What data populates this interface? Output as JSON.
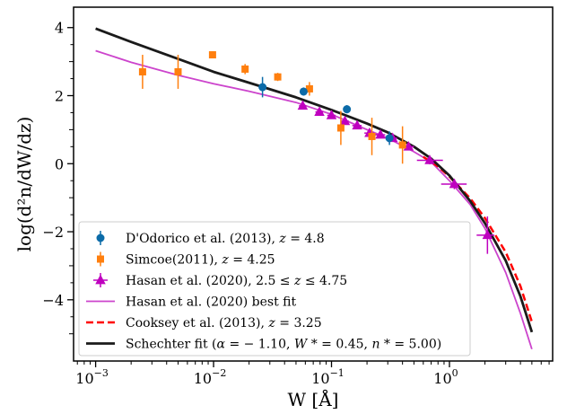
{
  "chart_data": {
    "type": "scatter",
    "xlabel": "W [Å]",
    "ylabel": "log(d²n/dW/dz)",
    "xscale": "log",
    "xlim": [
      0.00065,
      7.5
    ],
    "ylim": [
      -5.8,
      4.6
    ],
    "x_ticks": [
      {
        "value": 0.001,
        "base": "10",
        "exp": "−3"
      },
      {
        "value": 0.01,
        "base": "10",
        "exp": "−2"
      },
      {
        "value": 0.1,
        "base": "10",
        "exp": "−1"
      },
      {
        "value": 1,
        "base": "10",
        "exp": "0"
      }
    ],
    "y_ticks": [
      {
        "value": 4,
        "label": "4"
      },
      {
        "value": 2,
        "label": "2"
      },
      {
        "value": 0,
        "label": "0"
      },
      {
        "value": -2,
        "label": "−2"
      },
      {
        "value": -4,
        "label": "−4"
      }
    ],
    "grid": false,
    "legend_position": "lower-left",
    "series": [
      {
        "key": "dodorico",
        "kind": "errorbar",
        "marker": "circle",
        "color": "#0b6ba8",
        "name_parts": [
          "D'Odorico et al. (2013), ",
          "z",
          " = 4.8"
        ],
        "points": [
          {
            "x": 0.026,
            "y": 2.25,
            "yerr": 0.3
          },
          {
            "x": 0.058,
            "y": 2.12,
            "yerr": 0.12
          },
          {
            "x": 0.135,
            "y": 1.6,
            "yerr": 0.12
          },
          {
            "x": 0.31,
            "y": 0.75,
            "yerr": 0.2
          }
        ]
      },
      {
        "key": "simcoe",
        "kind": "errorbar",
        "marker": "square",
        "color": "#ff7f0e",
        "name_parts": [
          "Simcoe(2011), ",
          "z",
          " = 4.25"
        ],
        "points": [
          {
            "x": 0.0025,
            "y": 2.7,
            "yerr": 0.5
          },
          {
            "x": 0.005,
            "y": 2.7,
            "yerr": 0.5
          },
          {
            "x": 0.0098,
            "y": 3.2,
            "yerr": 0.1
          },
          {
            "x": 0.0185,
            "y": 2.78,
            "yerr": 0.15
          },
          {
            "x": 0.035,
            "y": 2.55,
            "yerr": 0.12
          },
          {
            "x": 0.065,
            "y": 2.2,
            "yerr": 0.2
          },
          {
            "x": 0.12,
            "y": 1.05,
            "yerr": 0.5
          },
          {
            "x": 0.22,
            "y": 0.8,
            "yerr": 0.55
          },
          {
            "x": 0.4,
            "y": 0.55,
            "yerr": 0.55
          }
        ]
      },
      {
        "key": "hasan",
        "kind": "errorbar",
        "marker": "triangle",
        "color": "#bf00bf",
        "name_parts": [
          "Hasan et al. (2020), 2.5 ≤ ",
          "z",
          " ≤ 4.75"
        ],
        "points": [
          {
            "x": 0.057,
            "y": 1.7,
            "xerr": [
              0.004,
              0.004
            ],
            "yerr": 0.05
          },
          {
            "x": 0.079,
            "y": 1.52,
            "xerr": [
              0.006,
              0.006
            ],
            "yerr": 0.05
          },
          {
            "x": 0.1,
            "y": 1.42,
            "xerr": [
              0.008,
              0.008
            ],
            "yerr": 0.05
          },
          {
            "x": 0.13,
            "y": 1.25,
            "xerr": [
              0.01,
              0.01
            ],
            "yerr": 0.06
          },
          {
            "x": 0.165,
            "y": 1.12,
            "xerr": [
              0.015,
              0.015
            ],
            "yerr": 0.07
          },
          {
            "x": 0.21,
            "y": 0.9,
            "xerr": [
              0.02,
              0.02
            ],
            "yerr": 0.08
          },
          {
            "x": 0.26,
            "y": 0.85,
            "xerr": [
              0.025,
              0.025
            ],
            "yerr": 0.08
          },
          {
            "x": 0.33,
            "y": 0.75,
            "xerr": [
              0.03,
              0.03
            ],
            "yerr": 0.08
          },
          {
            "x": 0.45,
            "y": 0.5,
            "xerr": [
              0.05,
              0.05
            ],
            "yerr": 0.1
          },
          {
            "x": 0.68,
            "y": 0.1,
            "xerr": [
              0.15,
              0.2
            ],
            "yerr": 0.12
          },
          {
            "x": 1.1,
            "y": -0.6,
            "xerr": [
              0.25,
              0.3
            ],
            "yerr": 0.15
          },
          {
            "x": 2.1,
            "y": -2.1,
            "xerr": [
              0.4,
              0.3
            ],
            "yerr": 0.55
          }
        ]
      },
      {
        "key": "hasan_fit",
        "kind": "line",
        "color": "#cc44cc",
        "dash": "",
        "width": 1.8,
        "name_parts": [
          "Hasan et al. (2020) best fit"
        ],
        "points": [
          {
            "x": 0.001,
            "y": 3.32
          },
          {
            "x": 0.002,
            "y": 2.98
          },
          {
            "x": 0.005,
            "y": 2.6
          },
          {
            "x": 0.01,
            "y": 2.35
          },
          {
            "x": 0.02,
            "y": 2.13
          },
          {
            "x": 0.05,
            "y": 1.8
          },
          {
            "x": 0.1,
            "y": 1.45
          },
          {
            "x": 0.2,
            "y": 1.0
          },
          {
            "x": 0.3,
            "y": 0.75
          },
          {
            "x": 0.5,
            "y": 0.35
          },
          {
            "x": 0.7,
            "y": 0.05
          },
          {
            "x": 1.0,
            "y": -0.5
          },
          {
            "x": 1.5,
            "y": -1.2
          },
          {
            "x": 2.0,
            "y": -1.9
          },
          {
            "x": 3.0,
            "y": -3.2
          },
          {
            "x": 4.0,
            "y": -4.4
          },
          {
            "x": 5.0,
            "y": -5.45
          }
        ]
      },
      {
        "key": "cooksey",
        "kind": "line",
        "color": "#ff0000",
        "dash": "8 4",
        "width": 2.5,
        "name_parts": [
          "Cooksey et al. (2013), ",
          "z",
          " = 3.25"
        ],
        "points": [
          {
            "x": 0.6,
            "y": 0.2
          },
          {
            "x": 0.8,
            "y": -0.08
          },
          {
            "x": 1.0,
            "y": -0.38
          },
          {
            "x": 1.5,
            "y": -1.02
          },
          {
            "x": 2.0,
            "y": -1.6
          },
          {
            "x": 3.0,
            "y": -2.6
          },
          {
            "x": 4.0,
            "y": -3.6
          },
          {
            "x": 5.0,
            "y": -4.65
          }
        ]
      },
      {
        "key": "schechter",
        "kind": "line",
        "color": "#1a1a1a",
        "dash": "",
        "width": 2.8,
        "name_parts": [
          "Schechter fit (",
          "α",
          " = − 1.10, ",
          "W",
          " * = 0.45, ",
          "n",
          " * = 5.00)"
        ],
        "points": [
          {
            "x": 0.001,
            "y": 3.97
          },
          {
            "x": 0.002,
            "y": 3.58
          },
          {
            "x": 0.005,
            "y": 3.08
          },
          {
            "x": 0.01,
            "y": 2.7
          },
          {
            "x": 0.02,
            "y": 2.38
          },
          {
            "x": 0.05,
            "y": 1.95
          },
          {
            "x": 0.1,
            "y": 1.58
          },
          {
            "x": 0.2,
            "y": 1.18
          },
          {
            "x": 0.3,
            "y": 0.92
          },
          {
            "x": 0.5,
            "y": 0.5
          },
          {
            "x": 0.7,
            "y": 0.15
          },
          {
            "x": 1.0,
            "y": -0.35
          },
          {
            "x": 1.5,
            "y": -1.1
          },
          {
            "x": 2.0,
            "y": -1.75
          },
          {
            "x": 3.0,
            "y": -2.85
          },
          {
            "x": 4.0,
            "y": -3.9
          },
          {
            "x": 5.0,
            "y": -4.95
          }
        ]
      }
    ],
    "legend_order": [
      "dodorico",
      "simcoe",
      "hasan",
      "hasan_fit",
      "cooksey",
      "schechter"
    ],
    "italic_parts": [
      "z",
      "α",
      "W",
      "n"
    ]
  }
}
